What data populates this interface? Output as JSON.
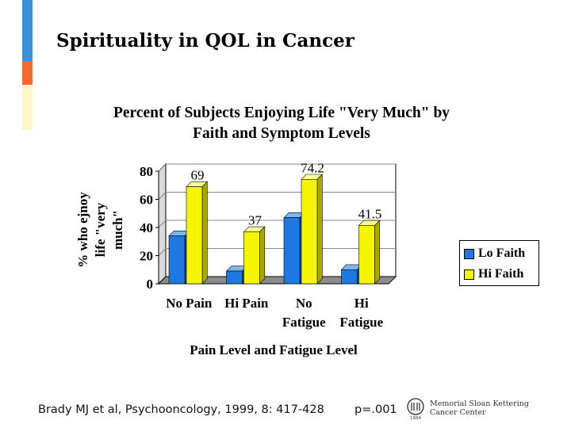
{
  "slide": {
    "title": "Spirituality in QOL in Cancer",
    "accent_colors": [
      "#3b8fd9",
      "#f26b32",
      "#fdf6c8"
    ]
  },
  "chart_data": {
    "type": "bar",
    "title_line1": "Percent of Subjects Enjoying Life \"Very Much\" by",
    "title_line2": "Faith and Symptom Levels",
    "categories": [
      [
        "No Pain"
      ],
      [
        "Hi Pain"
      ],
      [
        "No",
        "Fatigue"
      ],
      [
        "Hi",
        "Fatigue"
      ]
    ],
    "series": [
      {
        "name": "Lo Faith",
        "color": "#1e78e0",
        "values": [
          34,
          9,
          47,
          10
        ]
      },
      {
        "name": "Hi Faith",
        "color": "#f5f500",
        "values": [
          69,
          37,
          74.2,
          41.5
        ]
      }
    ],
    "data_labels": [
      "69",
      "37",
      "74.2",
      "41.5"
    ],
    "ylabel_lines": [
      "% who ejnoy",
      "life \"very",
      "much\""
    ],
    "xlabel": "Pain Level and Fatigue Level",
    "ylim": [
      0,
      80
    ],
    "yticks": [
      0,
      20,
      40,
      60,
      80
    ],
    "grid": true,
    "legend_position": "right"
  },
  "footer": {
    "citation": "Brady MJ et al, Psychooncology, 1999, 8: 417-428",
    "p_value": "p=.001",
    "logo_line1": "Memorial Sloan Kettering",
    "logo_line2": "Cancer Center",
    "logo_small": "1884"
  }
}
